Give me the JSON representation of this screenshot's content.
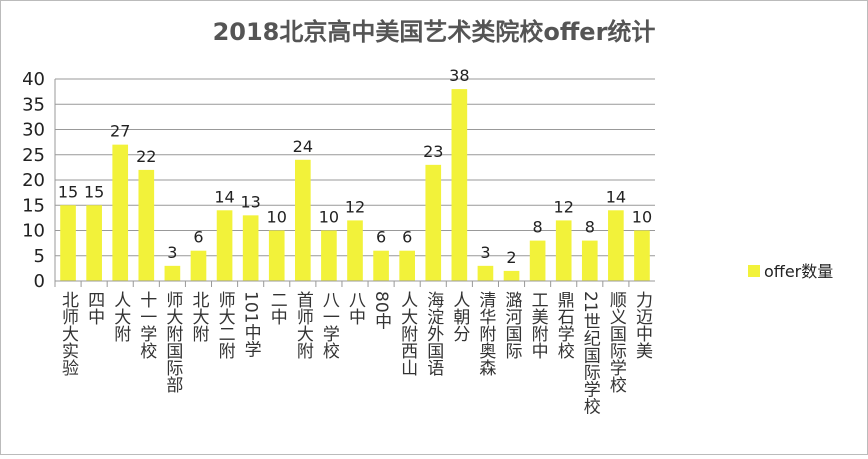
{
  "chart_data": {
    "type": "bar",
    "title": "2018北京高中美国艺术类院校offer统计",
    "categories": [
      "北师大实验",
      "四中",
      "人大附",
      "十一学校",
      "师大附国际部",
      "北大附",
      "师大二附",
      "101中学",
      "二中",
      "首师大附",
      "八一学校",
      "八中",
      "80中",
      "人大附西山",
      "海淀外国语",
      "人朝分",
      "清华附奥森",
      "潞河国际",
      "工美附中",
      "鼎石学校",
      "21世纪国际学校",
      "顺义国际学校",
      "力迈中美"
    ],
    "series": [
      {
        "name": "offer数量",
        "color": "#f2f23a",
        "values": [
          15,
          15,
          27,
          22,
          3,
          6,
          14,
          13,
          10,
          24,
          10,
          12,
          6,
          6,
          23,
          38,
          3,
          2,
          8,
          12,
          8,
          14,
          10
        ]
      }
    ],
    "ylim": [
      0,
      40
    ],
    "yticks": [
      0,
      5,
      10,
      15,
      20,
      25,
      30,
      35,
      40
    ],
    "grid": true,
    "legend": "right"
  }
}
